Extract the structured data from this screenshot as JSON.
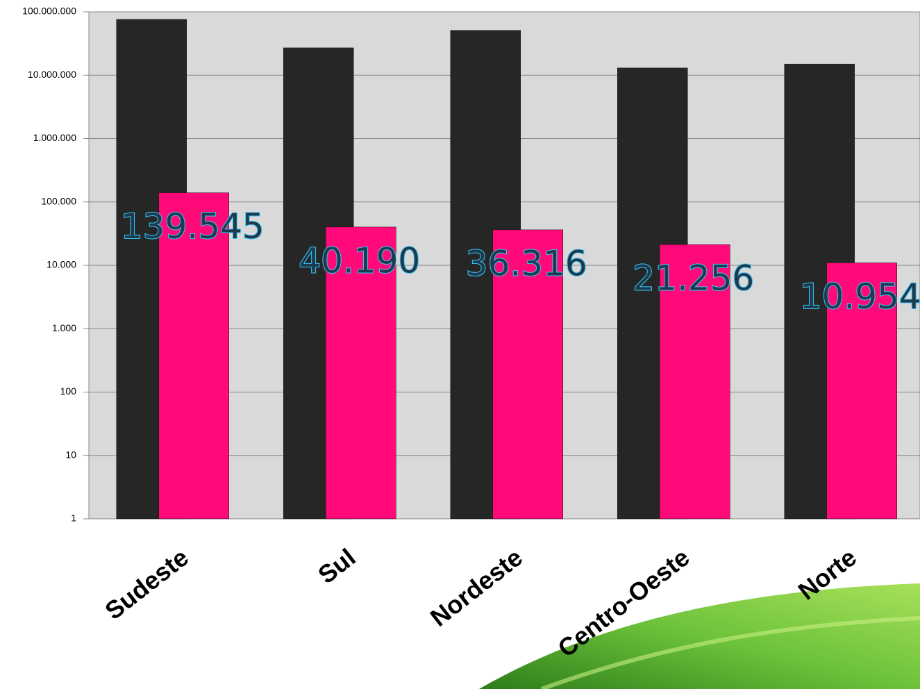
{
  "chart_data": {
    "type": "bar",
    "log": true,
    "categories": [
      "Sudeste",
      "Sul",
      "Nordeste",
      "Centro-Oeste",
      "Norte"
    ],
    "series": [
      {
        "color": "#262626",
        "values": [
          76000000,
          27000000,
          51000000,
          13000000,
          15000000
        ]
      },
      {
        "color": "#ff0a78",
        "values": [
          139545,
          40190,
          36316,
          21256,
          10954
        ],
        "value_labels": [
          "139.545",
          "40.190",
          "36.316",
          "21.256",
          "10.954"
        ]
      }
    ],
    "ylim": [
      1,
      100000000
    ],
    "yticks": [
      1,
      10,
      100,
      {
        "value": 1000,
        "label": "1.000"
      },
      {
        "value": 10000,
        "label": "10.000"
      },
      {
        "value": 100000,
        "label": "100.000"
      },
      {
        "value": 1000000,
        "label": "1.000.000"
      },
      {
        "value": 10000000,
        "label": "10.000.000"
      },
      {
        "value": 100000000,
        "label": "100.000.000"
      }
    ],
    "grid": true
  }
}
